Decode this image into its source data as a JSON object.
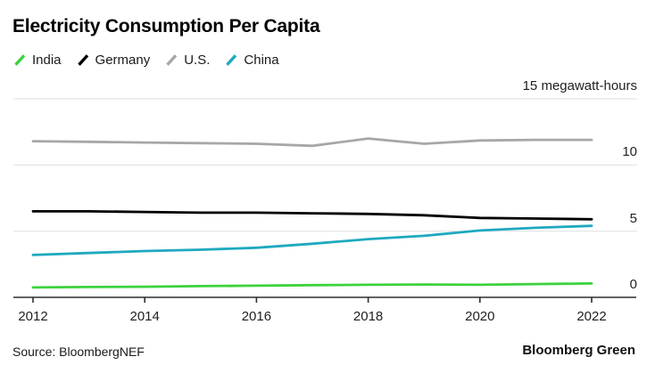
{
  "title": "Electricity Consumption Per Capita",
  "source": "Source: BloombergNEF",
  "brand": "Bloomberg Green",
  "colors": {
    "india": "#3cd23c",
    "germany": "#000000",
    "us": "#a7a7a7",
    "china": "#1ea9bf",
    "gridline": "#e3e3e3",
    "axis": "#2e2e2e",
    "text": "#1f1f1f"
  },
  "chart_data": {
    "type": "line",
    "x": [
      2012,
      2013,
      2014,
      2015,
      2016,
      2017,
      2018,
      2019,
      2020,
      2021,
      2022
    ],
    "series": [
      {
        "name": "India",
        "color": "#3cd23c",
        "values": [
          0.75,
          0.78,
          0.8,
          0.85,
          0.88,
          0.92,
          0.95,
          0.97,
          0.95,
          1.0,
          1.05
        ]
      },
      {
        "name": "Germany",
        "color": "#000000",
        "values": [
          6.5,
          6.5,
          6.45,
          6.4,
          6.4,
          6.35,
          6.3,
          6.2,
          6.0,
          5.95,
          5.9
        ]
      },
      {
        "name": "U.S.",
        "color": "#a7a7a7",
        "values": [
          11.8,
          11.75,
          11.7,
          11.65,
          11.6,
          11.45,
          12.0,
          11.6,
          11.85,
          11.9,
          11.9
        ]
      },
      {
        "name": "China",
        "color": "#1ea9bf",
        "values": [
          3.2,
          3.35,
          3.5,
          3.6,
          3.75,
          4.05,
          4.4,
          4.65,
          5.05,
          5.25,
          5.4
        ]
      }
    ],
    "title": "Electricity Consumption Per Capita",
    "xlabel": "",
    "ylabel": "megawatt-hours",
    "ylim": [
      0,
      15
    ],
    "yticks": [
      {
        "value": 15,
        "label": "15 megawatt-hours"
      },
      {
        "value": 10,
        "label": "10"
      },
      {
        "value": 5,
        "label": "5"
      },
      {
        "value": 0,
        "label": "0"
      }
    ],
    "xticks": [
      2012,
      2014,
      2016,
      2018,
      2020,
      2022
    ],
    "grid": "horizontal",
    "legend_position": "top-left"
  }
}
